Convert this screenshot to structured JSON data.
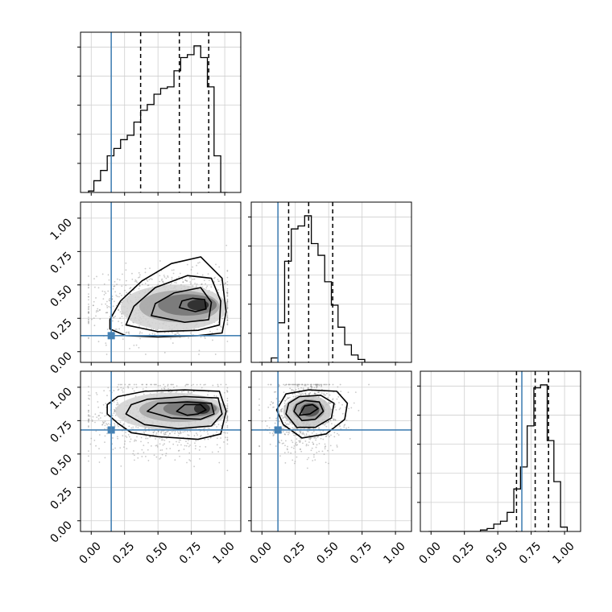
{
  "chart_data": {
    "type": "corner",
    "title": "",
    "parameters": [
      {
        "key": "p0",
        "truth": 0.15,
        "quantiles": [
          0.37,
          0.66,
          0.88
        ],
        "range": [
          -0.08,
          1.12
        ]
      },
      {
        "key": "p1",
        "truth": 0.12,
        "quantiles": [
          0.2,
          0.35,
          0.53
        ],
        "range": [
          -0.08,
          1.12
        ]
      },
      {
        "key": "p2",
        "truth": 0.68,
        "quantiles": [
          0.64,
          0.78,
          0.88
        ],
        "range": [
          -0.08,
          1.12
        ]
      }
    ],
    "tick_values": [
      0.0,
      0.25,
      0.5,
      0.75,
      1.0
    ],
    "tick_labels": [
      "0.00",
      "0.25",
      "0.50",
      "0.75",
      "1.00"
    ],
    "grid": true,
    "colors": {
      "truth": "#4682b4",
      "hist": "#000000",
      "points": "#888888",
      "frame": "#000000"
    },
    "histograms": [
      {
        "param": "p0",
        "bin_edges": [
          -0.02,
          0.02,
          0.07,
          0.12,
          0.17,
          0.22,
          0.27,
          0.32,
          0.37,
          0.42,
          0.47,
          0.52,
          0.57,
          0.62,
          0.67,
          0.72,
          0.77,
          0.82,
          0.87,
          0.92,
          0.97,
          1.02
        ],
        "counts": [
          0.01,
          0.08,
          0.15,
          0.25,
          0.3,
          0.36,
          0.39,
          0.48,
          0.56,
          0.6,
          0.67,
          0.71,
          0.72,
          0.83,
          0.92,
          0.94,
          1.0,
          0.92,
          0.72,
          0.25,
          0.0
        ]
      },
      {
        "param": "p1",
        "bin_edges": [
          -0.02,
          0.02,
          0.07,
          0.12,
          0.17,
          0.22,
          0.27,
          0.32,
          0.37,
          0.42,
          0.47,
          0.52,
          0.57,
          0.62,
          0.67,
          0.72,
          0.77,
          0.82,
          0.87,
          0.92,
          0.97,
          1.02
        ],
        "counts": [
          0.0,
          0.0,
          0.03,
          0.27,
          0.69,
          0.91,
          0.93,
          1.0,
          0.81,
          0.73,
          0.55,
          0.39,
          0.24,
          0.12,
          0.05,
          0.02,
          0.0,
          0.0,
          0.0,
          0.0,
          0.0
        ]
      },
      {
        "param": "p2",
        "bin_edges": [
          -0.02,
          0.02,
          0.07,
          0.12,
          0.17,
          0.22,
          0.27,
          0.32,
          0.37,
          0.42,
          0.47,
          0.52,
          0.57,
          0.62,
          0.67,
          0.72,
          0.77,
          0.82,
          0.87,
          0.92,
          0.97,
          1.02
        ],
        "counts": [
          0.0,
          0.0,
          0.0,
          0.0,
          0.0,
          0.0,
          0.0,
          0.0,
          0.01,
          0.02,
          0.05,
          0.07,
          0.13,
          0.29,
          0.44,
          0.72,
          0.98,
          1.0,
          0.62,
          0.34,
          0.03
        ]
      }
    ],
    "scatter_panels": [
      {
        "x": "p0",
        "y": "p1",
        "points_center": [
          0.55,
          0.35
        ],
        "points_spread": [
          0.28,
          0.13
        ],
        "density_blobs": [
          {
            "cx": 0.62,
            "cy": 0.33,
            "rx": 0.4,
            "ry": 0.17,
            "level": 0.18
          },
          {
            "cx": 0.66,
            "cy": 0.34,
            "rx": 0.3,
            "ry": 0.12,
            "level": 0.35
          },
          {
            "cx": 0.72,
            "cy": 0.35,
            "rx": 0.22,
            "ry": 0.08,
            "level": 0.55
          },
          {
            "cx": 0.8,
            "cy": 0.35,
            "rx": 0.08,
            "ry": 0.04,
            "level": 0.85
          }
        ],
        "contours": [
          [
            [
              0.14,
              0.17
            ],
            [
              0.26,
              0.12
            ],
            [
              0.5,
              0.11
            ],
            [
              0.8,
              0.12
            ],
            [
              0.98,
              0.14
            ],
            [
              1.01,
              0.3
            ],
            [
              0.98,
              0.55
            ],
            [
              0.82,
              0.71
            ],
            [
              0.6,
              0.66
            ],
            [
              0.38,
              0.53
            ],
            [
              0.22,
              0.38
            ],
            [
              0.14,
              0.24
            ]
          ],
          [
            [
              0.26,
              0.2
            ],
            [
              0.5,
              0.15
            ],
            [
              0.8,
              0.16
            ],
            [
              0.96,
              0.2
            ],
            [
              0.97,
              0.38
            ],
            [
              0.9,
              0.55
            ],
            [
              0.72,
              0.57
            ],
            [
              0.48,
              0.48
            ],
            [
              0.32,
              0.34
            ]
          ],
          [
            [
              0.45,
              0.27
            ],
            [
              0.7,
              0.22
            ],
            [
              0.88,
              0.24
            ],
            [
              0.9,
              0.37
            ],
            [
              0.82,
              0.48
            ],
            [
              0.62,
              0.44
            ],
            [
              0.48,
              0.36
            ]
          ],
          [
            [
              0.66,
              0.33
            ],
            [
              0.78,
              0.3
            ],
            [
              0.86,
              0.32
            ],
            [
              0.85,
              0.39
            ],
            [
              0.76,
              0.4
            ],
            [
              0.68,
              0.38
            ]
          ]
        ]
      },
      {
        "x": "p0",
        "y": "p2",
        "points_center": [
          0.55,
          0.78
        ],
        "points_spread": [
          0.28,
          0.14
        ],
        "density_blobs": [
          {
            "cx": 0.6,
            "cy": 0.82,
            "rx": 0.42,
            "ry": 0.14,
            "level": 0.18
          },
          {
            "cx": 0.66,
            "cy": 0.83,
            "rx": 0.3,
            "ry": 0.09,
            "level": 0.35
          },
          {
            "cx": 0.74,
            "cy": 0.84,
            "rx": 0.2,
            "ry": 0.06,
            "level": 0.55
          },
          {
            "cx": 0.83,
            "cy": 0.84,
            "rx": 0.06,
            "ry": 0.04,
            "level": 0.85
          }
        ],
        "contours": [
          [
            [
              0.12,
              0.8
            ],
            [
              0.2,
              0.73
            ],
            [
              0.3,
              0.66
            ],
            [
              0.5,
              0.63
            ],
            [
              0.8,
              0.61
            ],
            [
              0.97,
              0.65
            ],
            [
              1.01,
              0.82
            ],
            [
              0.96,
              0.97
            ],
            [
              0.7,
              0.98
            ],
            [
              0.4,
              0.97
            ],
            [
              0.2,
              0.93
            ],
            [
              0.12,
              0.87
            ]
          ],
          [
            [
              0.26,
              0.8
            ],
            [
              0.4,
              0.72
            ],
            [
              0.65,
              0.69
            ],
            [
              0.9,
              0.71
            ],
            [
              0.98,
              0.8
            ],
            [
              0.95,
              0.92
            ],
            [
              0.7,
              0.93
            ],
            [
              0.42,
              0.91
            ],
            [
              0.3,
              0.87
            ]
          ],
          [
            [
              0.42,
              0.82
            ],
            [
              0.6,
              0.77
            ],
            [
              0.82,
              0.76
            ],
            [
              0.92,
              0.8
            ],
            [
              0.9,
              0.88
            ],
            [
              0.72,
              0.89
            ],
            [
              0.5,
              0.88
            ]
          ],
          [
            [
              0.64,
              0.82
            ],
            [
              0.72,
              0.79
            ],
            [
              0.8,
              0.8
            ],
            [
              0.86,
              0.83
            ],
            [
              0.82,
              0.87
            ],
            [
              0.7,
              0.87
            ]
          ]
        ]
      },
      {
        "x": "p1",
        "y": "p2",
        "points_center": [
          0.33,
          0.8
        ],
        "points_spread": [
          0.13,
          0.14
        ],
        "density_blobs": [
          {
            "cx": 0.34,
            "cy": 0.82,
            "rx": 0.18,
            "ry": 0.12,
            "level": 0.22
          },
          {
            "cx": 0.35,
            "cy": 0.83,
            "rx": 0.12,
            "ry": 0.08,
            "level": 0.42
          },
          {
            "cx": 0.36,
            "cy": 0.83,
            "rx": 0.07,
            "ry": 0.05,
            "level": 0.7
          }
        ],
        "contours": [
          [
            [
              0.11,
              0.83
            ],
            [
              0.16,
              0.72
            ],
            [
              0.3,
              0.62
            ],
            [
              0.48,
              0.65
            ],
            [
              0.62,
              0.76
            ],
            [
              0.64,
              0.88
            ],
            [
              0.56,
              0.97
            ],
            [
              0.35,
              0.98
            ],
            [
              0.18,
              0.95
            ]
          ],
          [
            [
              0.18,
              0.8
            ],
            [
              0.26,
              0.7
            ],
            [
              0.4,
              0.7
            ],
            [
              0.52,
              0.77
            ],
            [
              0.54,
              0.88
            ],
            [
              0.44,
              0.94
            ],
            [
              0.28,
              0.93
            ],
            [
              0.2,
              0.88
            ]
          ],
          [
            [
              0.24,
              0.82
            ],
            [
              0.3,
              0.75
            ],
            [
              0.4,
              0.76
            ],
            [
              0.46,
              0.82
            ],
            [
              0.43,
              0.89
            ],
            [
              0.32,
              0.9
            ],
            [
              0.26,
              0.87
            ]
          ],
          [
            [
              0.28,
              0.79
            ],
            [
              0.36,
              0.8
            ],
            [
              0.42,
              0.84
            ],
            [
              0.38,
              0.87
            ],
            [
              0.32,
              0.86
            ]
          ]
        ]
      }
    ]
  }
}
